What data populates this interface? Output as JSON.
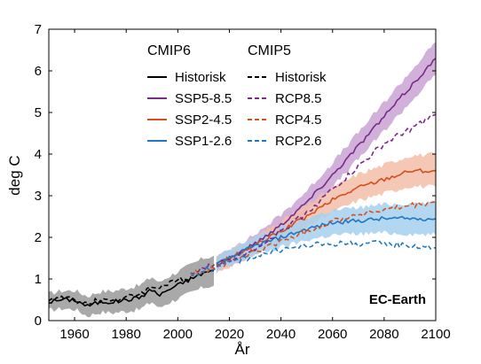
{
  "chart_data": {
    "type": "line",
    "xlabel": "År",
    "ylabel": "deg C",
    "xlim": [
      1950,
      2100
    ],
    "ylim": [
      0,
      7
    ],
    "xticks": [
      1960,
      1980,
      2000,
      2020,
      2040,
      2060,
      2080,
      2100
    ],
    "yticks": [
      0,
      1,
      2,
      3,
      4,
      5,
      6,
      7
    ],
    "grid": false,
    "legend_position": "top-center",
    "legend_headers": {
      "cmip6": "CMIP6",
      "cmip5": "CMIP5"
    },
    "annotation": "EC-Earth",
    "colors": {
      "historical": "#000000",
      "ssp585": "#7b2a8a",
      "ssp245": "#d4501e",
      "ssp126": "#1f77c4"
    },
    "series": [
      {
        "name": "Historisk",
        "group": "CMIP6",
        "dash": "solid",
        "color": "#000000",
        "band": "#9a9a9a",
        "x": [
          1950,
          1955,
          1960,
          1965,
          1970,
          1975,
          1980,
          1985,
          1990,
          1993,
          1995,
          2000,
          2005,
          2010,
          2014
        ],
        "y": [
          0.45,
          0.5,
          0.5,
          0.35,
          0.45,
          0.45,
          0.5,
          0.55,
          0.75,
          0.6,
          0.7,
          0.85,
          1.0,
          1.15,
          1.2
        ]
      },
      {
        "name": "SSP5-8.5",
        "group": "CMIP6",
        "dash": "solid",
        "color": "#7b2a8a",
        "band": "#c9a3d2",
        "x": [
          2015,
          2020,
          2030,
          2040,
          2050,
          2060,
          2070,
          2080,
          2090,
          2100
        ],
        "y": [
          1.35,
          1.5,
          1.85,
          2.3,
          2.85,
          3.5,
          4.2,
          4.9,
          5.6,
          6.3
        ]
      },
      {
        "name": "SSP2-4.5",
        "group": "CMIP6",
        "dash": "solid",
        "color": "#d4501e",
        "band": "#f3bda8",
        "x": [
          2015,
          2020,
          2030,
          2040,
          2050,
          2060,
          2070,
          2080,
          2090,
          2100
        ],
        "y": [
          1.35,
          1.5,
          1.8,
          2.15,
          2.5,
          2.9,
          3.2,
          3.4,
          3.6,
          3.6
        ]
      },
      {
        "name": "SSP1-2.6",
        "group": "CMIP6",
        "dash": "solid",
        "color": "#1f77c4",
        "band": "#a6d0ee",
        "x": [
          2015,
          2020,
          2030,
          2040,
          2050,
          2060,
          2070,
          2080,
          2090,
          2100
        ],
        "y": [
          1.35,
          1.5,
          1.8,
          2.0,
          2.2,
          2.35,
          2.4,
          2.45,
          2.45,
          2.45
        ]
      },
      {
        "name": "Historisk",
        "group": "CMIP5",
        "dash": "dashed",
        "color": "#000000",
        "x": [
          1950,
          1955,
          1960,
          1965,
          1970,
          1975,
          1980,
          1985,
          1990,
          1995,
          2000,
          2005
        ],
        "y": [
          0.5,
          0.55,
          0.5,
          0.4,
          0.5,
          0.5,
          0.55,
          0.65,
          0.8,
          0.85,
          0.95,
          1.05
        ]
      },
      {
        "name": "RCP8.5",
        "group": "CMIP5",
        "dash": "dashed",
        "color": "#7b2a8a",
        "x": [
          2005,
          2010,
          2020,
          2030,
          2040,
          2050,
          2060,
          2070,
          2080,
          2090,
          2100
        ],
        "y": [
          1.1,
          1.25,
          1.45,
          1.75,
          2.15,
          2.6,
          3.15,
          3.7,
          4.25,
          4.6,
          4.95
        ]
      },
      {
        "name": "RCP4.5",
        "group": "CMIP5",
        "dash": "dashed",
        "color": "#d4501e",
        "x": [
          2005,
          2010,
          2020,
          2030,
          2040,
          2050,
          2060,
          2070,
          2080,
          2090,
          2100
        ],
        "y": [
          1.1,
          1.2,
          1.4,
          1.65,
          1.9,
          2.15,
          2.4,
          2.55,
          2.65,
          2.75,
          2.85
        ]
      },
      {
        "name": "RCP2.6",
        "group": "CMIP5",
        "dash": "dashed",
        "color": "#1f77c4",
        "x": [
          2005,
          2010,
          2020,
          2030,
          2040,
          2050,
          2060,
          2070,
          2080,
          2090,
          2100
        ],
        "y": [
          1.1,
          1.2,
          1.4,
          1.55,
          1.7,
          1.8,
          1.85,
          1.85,
          1.85,
          1.8,
          1.75
        ]
      }
    ]
  }
}
